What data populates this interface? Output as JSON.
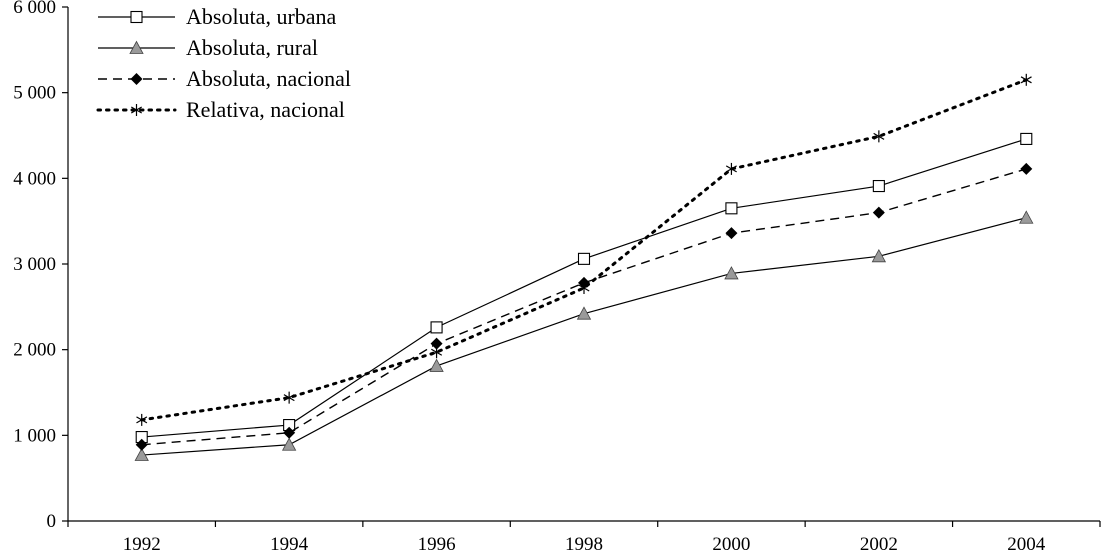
{
  "chart_data": {
    "type": "line",
    "title": "",
    "xlabel": "",
    "ylabel": "",
    "categories": [
      "1992",
      "1994",
      "1996",
      "1998",
      "2000",
      "2002",
      "2004"
    ],
    "ylim": [
      0,
      6000
    ],
    "yticks": [
      0,
      1000,
      2000,
      3000,
      4000,
      5000,
      6000
    ],
    "ytick_labels": [
      "0",
      "1 000",
      "2 000",
      "3 000",
      "4 000",
      "5 000",
      "6 000"
    ],
    "grid": false,
    "legend_position": "top-left",
    "series": [
      {
        "name": "Absoluta, urbana",
        "line_style": "solid",
        "marker": "open-square",
        "values": [
          980,
          1120,
          2260,
          3060,
          3650,
          3910,
          4460
        ]
      },
      {
        "name": "Absoluta, rural",
        "line_style": "solid",
        "marker": "gray-triangle",
        "values": [
          770,
          890,
          1810,
          2420,
          2890,
          3090,
          3540
        ]
      },
      {
        "name": "Absoluta, nacional",
        "line_style": "dashed",
        "marker": "filled-diamond",
        "values": [
          890,
          1030,
          2070,
          2780,
          3360,
          3600,
          4110
        ]
      },
      {
        "name": "Relativa, nacional",
        "line_style": "dotted",
        "marker": "asterisk",
        "values": [
          1180,
          1440,
          1970,
          2720,
          4110,
          4490,
          5150
        ]
      }
    ]
  }
}
